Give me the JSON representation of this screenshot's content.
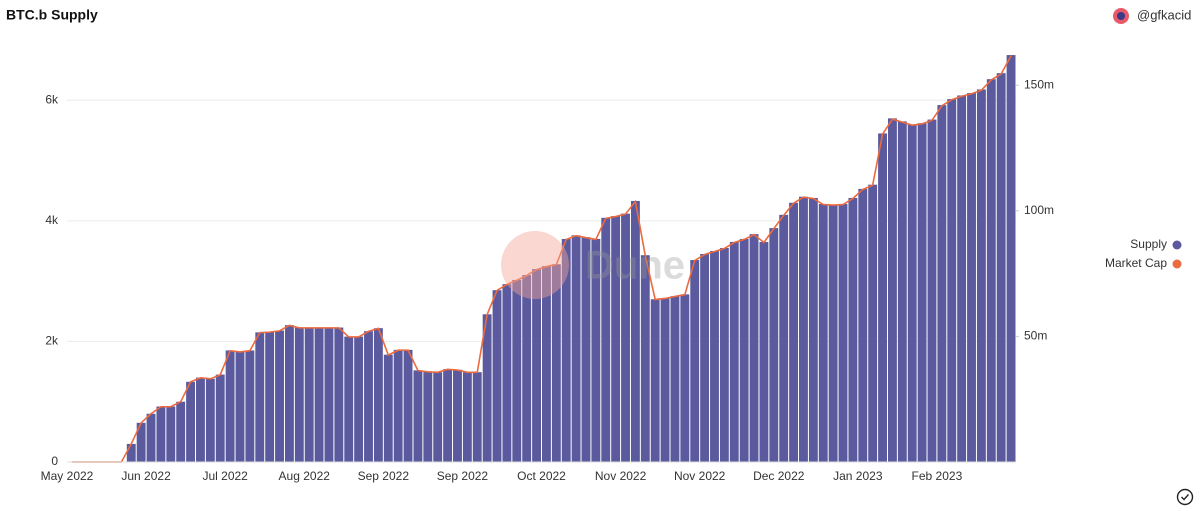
{
  "chart_data": {
    "type": "bar_line",
    "title": "BTC.b Supply",
    "author": "@gfkacid",
    "watermark": "Dune",
    "categories": [
      "May 2022",
      null,
      null,
      null,
      null,
      null,
      null,
      null,
      "Jun 2022",
      null,
      null,
      null,
      null,
      null,
      null,
      null,
      "Jul 2022",
      null,
      null,
      null,
      null,
      null,
      null,
      null,
      "Aug 2022",
      null,
      null,
      null,
      null,
      null,
      null,
      null,
      "Sep 2022",
      null,
      null,
      null,
      null,
      null,
      null,
      null,
      "Sep 2022",
      null,
      null,
      null,
      null,
      null,
      null,
      null,
      "Oct 2022",
      null,
      null,
      null,
      null,
      null,
      null,
      null,
      "Nov 2022",
      null,
      null,
      null,
      null,
      null,
      null,
      null,
      "Nov 2022",
      null,
      null,
      null,
      null,
      null,
      null,
      null,
      "Dec 2022",
      null,
      null,
      null,
      null,
      null,
      null,
      null,
      "Jan 2023",
      null,
      null,
      null,
      null,
      null,
      null,
      null,
      "Feb 2023",
      null,
      null,
      null,
      null,
      null,
      null,
      null
    ],
    "series": [
      {
        "name": "Supply",
        "color": "#5b5a9f",
        "values": [
          0,
          0,
          0,
          0,
          0,
          0,
          300,
          650,
          800,
          920,
          920,
          1000,
          1330,
          1400,
          1380,
          1450,
          1850,
          1830,
          1850,
          2150,
          2160,
          2180,
          2270,
          2230,
          2230,
          2230,
          2230,
          2230,
          2080,
          2080,
          2170,
          2220,
          1780,
          1860,
          1860,
          1520,
          1500,
          1490,
          1540,
          1530,
          1490,
          1490,
          2450,
          2850,
          2950,
          3020,
          3100,
          3200,
          3250,
          3280,
          3700,
          3760,
          3730,
          3700,
          4050,
          4080,
          4120,
          4330,
          3430,
          2700,
          2720,
          2750,
          2780,
          3350,
          3450,
          3500,
          3550,
          3650,
          3700,
          3780,
          3650,
          3880,
          4100,
          4300,
          4400,
          4380,
          4280,
          4270,
          4280,
          4380,
          4530,
          4600,
          5450,
          5700,
          5650,
          5600,
          5620,
          5680,
          5920,
          6020,
          6080,
          6120,
          6180,
          6350,
          6450,
          6750
        ]
      },
      {
        "name": "Market Cap",
        "color": "#ec6a3f",
        "axis": "y2",
        "values": [
          0,
          0,
          0,
          0,
          0,
          0,
          7.2,
          15.6,
          19.2,
          22.0,
          22.0,
          24.0,
          31.9,
          33.5,
          33.1,
          34.7,
          44.3,
          43.8,
          44.3,
          51.5,
          51.7,
          52.2,
          54.4,
          53.4,
          53.4,
          53.4,
          53.4,
          53.4,
          49.8,
          49.8,
          52.0,
          53.2,
          42.6,
          44.5,
          44.5,
          36.4,
          35.9,
          35.7,
          36.9,
          36.6,
          35.7,
          35.7,
          58.7,
          68.3,
          70.7,
          72.3,
          74.2,
          76.6,
          77.8,
          78.6,
          88.6,
          90.1,
          89.3,
          88.6,
          97.0,
          97.7,
          98.7,
          103.7,
          82.1,
          64.7,
          65.1,
          65.9,
          66.6,
          80.2,
          82.6,
          83.8,
          85.0,
          87.4,
          88.6,
          90.5,
          87.4,
          92.9,
          98.2,
          103.0,
          105.4,
          104.9,
          102.5,
          102.3,
          102.5,
          104.9,
          108.5,
          110.2,
          130.5,
          136.5,
          135.3,
          134.1,
          134.6,
          136.0,
          141.8,
          144.2,
          145.6,
          146.6,
          148.0,
          152.1,
          154.5,
          161.7
        ]
      }
    ],
    "ylim": [
      0,
      7000
    ],
    "yticks": [
      0,
      {
        "value": 2000,
        "label": "2k"
      },
      {
        "value": 4000,
        "label": "4k"
      },
      {
        "value": 6000,
        "label": "6k"
      }
    ],
    "y2lim": [
      0,
      168
    ],
    "y2ticks": [
      {
        "value": 50,
        "label": "50m"
      },
      {
        "value": 100,
        "label": "100m"
      },
      {
        "value": 150,
        "label": "150m"
      }
    ],
    "grid": true
  }
}
